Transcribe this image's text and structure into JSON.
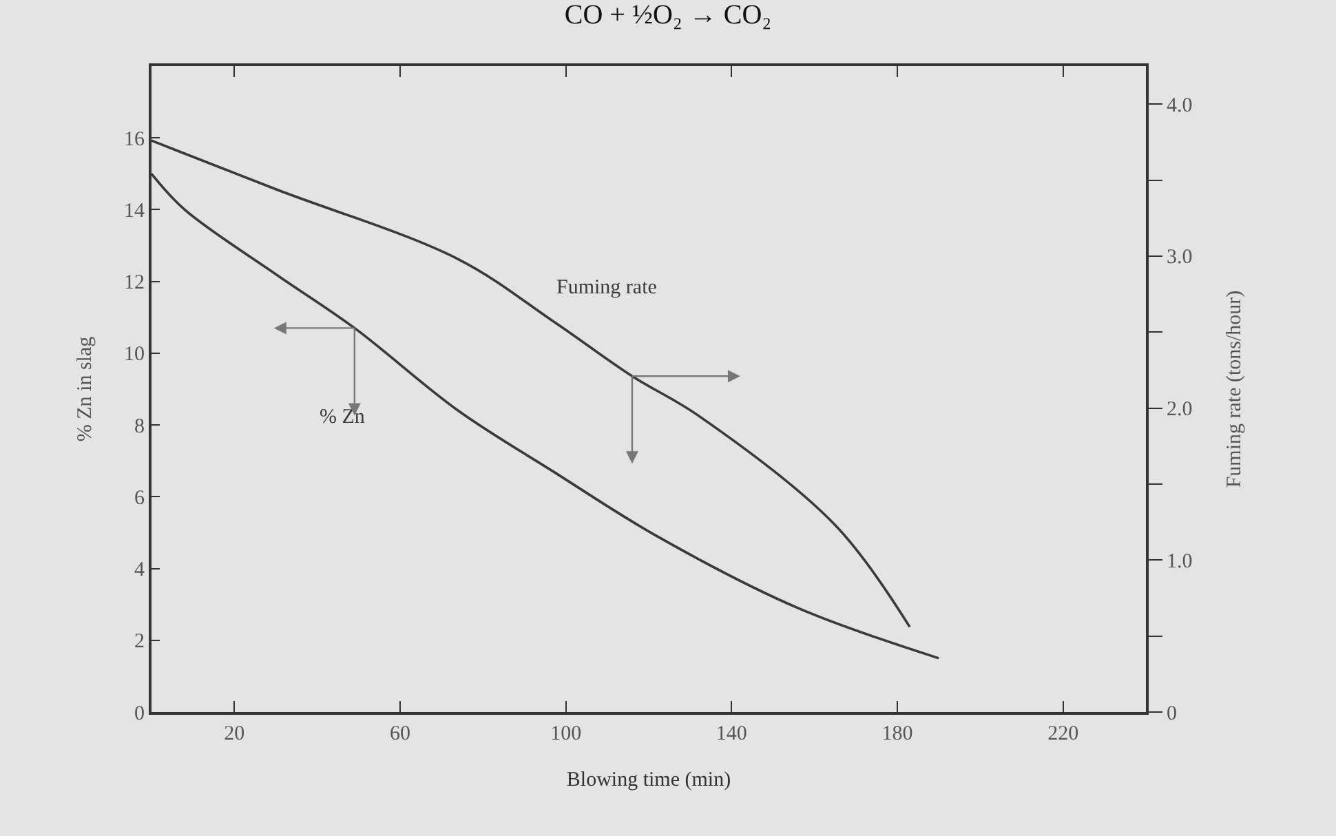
{
  "chart_data": {
    "type": "line",
    "title": "CO + ½O₂ → CO₂",
    "xlabel": "Blowing time (min)",
    "ylabel": "% Zn in slag",
    "y2label": "Fuming rate (tons/hour)",
    "xlim": [
      0,
      240
    ],
    "xticks": [
      20,
      60,
      100,
      140,
      180,
      220
    ],
    "ylim": [
      0,
      18
    ],
    "yticks": [
      0,
      2,
      4,
      6,
      8,
      10,
      12,
      14,
      16
    ],
    "y2lim": [
      0,
      4.25
    ],
    "y2ticks": [
      0,
      {
        "value": 0.5,
        "label": null
      },
      {
        "value": 1,
        "label": "1.0"
      },
      {
        "value": 1.5,
        "label": null
      },
      {
        "value": 2,
        "label": "2.0"
      },
      {
        "value": 2.5,
        "label": null
      },
      {
        "value": 3,
        "label": "3.0"
      },
      {
        "value": 3.5,
        "label": null
      },
      {
        "value": 4,
        "label": "4.0"
      }
    ],
    "grid": false,
    "legend": false,
    "series": [
      {
        "name": "% Zn",
        "color": "#3a3a3a",
        "x": [
          0,
          8,
          30,
          49,
          74,
          97,
          122,
          156,
          190
        ],
        "values": [
          15.0,
          14.0,
          12.2,
          10.7,
          8.4,
          6.7,
          4.9,
          2.9,
          1.5
        ]
      },
      {
        "name": "Fuming rate",
        "color": "#3a3a3a",
        "axis": "y2",
        "x": [
          0,
          30,
          74,
          97,
          116,
          132,
          165,
          183
        ],
        "values": [
          3.76,
          3.44,
          2.98,
          2.57,
          2.21,
          1.95,
          1.23,
          0.56
        ]
      }
    ]
  }
}
